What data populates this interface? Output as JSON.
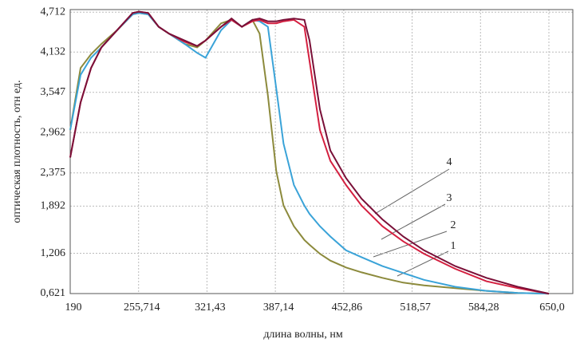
{
  "chart_data": {
    "type": "line",
    "x_label": "длина волны, нм",
    "y_label": "оптическая плотность, отн ед.",
    "x": [
      190,
      200,
      210,
      220,
      235,
      250,
      256,
      265,
      275,
      285,
      300,
      312,
      320,
      335,
      345,
      355,
      365,
      372,
      380,
      388,
      395,
      405,
      415,
      420,
      430,
      440,
      455,
      470,
      490,
      510,
      530,
      560,
      590,
      620,
      650
    ],
    "series": [
      {
        "name": "1",
        "color": "#8c8a3c",
        "values": [
          3.0,
          3.9,
          4.1,
          4.25,
          4.45,
          4.68,
          4.7,
          4.68,
          4.5,
          4.4,
          4.25,
          4.2,
          4.3,
          4.55,
          4.6,
          4.5,
          4.6,
          4.4,
          3.5,
          2.4,
          1.9,
          1.6,
          1.4,
          1.33,
          1.2,
          1.1,
          1.0,
          0.93,
          0.85,
          0.78,
          0.74,
          0.7,
          0.66,
          0.63,
          0.62
        ]
      },
      {
        "name": "2",
        "color": "#3aa3d8",
        "values": [
          3.0,
          3.8,
          4.05,
          4.2,
          4.45,
          4.68,
          4.7,
          4.68,
          4.5,
          4.4,
          4.25,
          4.12,
          4.05,
          4.45,
          4.6,
          4.5,
          4.6,
          4.58,
          4.5,
          3.6,
          2.8,
          2.2,
          1.9,
          1.78,
          1.6,
          1.45,
          1.25,
          1.15,
          1.02,
          0.92,
          0.82,
          0.72,
          0.66,
          0.63,
          0.62
        ]
      },
      {
        "name": "3",
        "color": "#d42040",
        "values": [
          2.6,
          3.4,
          3.9,
          4.2,
          4.45,
          4.7,
          4.72,
          4.7,
          4.5,
          4.4,
          4.28,
          4.22,
          4.3,
          4.5,
          4.6,
          4.5,
          4.58,
          4.6,
          4.55,
          4.55,
          4.58,
          4.6,
          4.5,
          4.0,
          3.0,
          2.55,
          2.2,
          1.9,
          1.6,
          1.38,
          1.2,
          0.98,
          0.8,
          0.7,
          0.62
        ]
      },
      {
        "name": "4",
        "color": "#7a1038",
        "values": [
          2.6,
          3.4,
          3.9,
          4.2,
          4.45,
          4.7,
          4.72,
          4.7,
          4.5,
          4.4,
          4.3,
          4.22,
          4.3,
          4.5,
          4.62,
          4.5,
          4.6,
          4.62,
          4.58,
          4.58,
          4.6,
          4.62,
          4.6,
          4.3,
          3.3,
          2.7,
          2.3,
          2.0,
          1.7,
          1.45,
          1.25,
          1.02,
          0.85,
          0.72,
          0.62
        ]
      }
    ],
    "xlim": [
      190,
      673
    ],
    "ylim": [
      0.621,
      4.75
    ],
    "xticks": [
      190,
      {
        "value": 255.714,
        "label": "255,714"
      },
      {
        "value": 321.43,
        "label": "321,43"
      },
      {
        "value": 387.14,
        "label": "387,14"
      },
      {
        "value": 452.86,
        "label": "452,86"
      },
      {
        "value": 518.57,
        "label": "518,57"
      },
      {
        "value": 584.28,
        "label": "584,28"
      },
      {
        "value": 650.0,
        "label": "650,0"
      }
    ],
    "yticks": [
      {
        "value": 0.621,
        "label": "0,621"
      },
      {
        "value": 1.206,
        "label": "1,206"
      },
      {
        "value": 1.892,
        "label": "1,892"
      },
      {
        "value": 2.375,
        "label": "2,375"
      },
      {
        "value": 2.962,
        "label": "2,962"
      },
      {
        "value": 3.547,
        "label": "3,547"
      },
      {
        "value": 4.132,
        "label": "4,132"
      },
      {
        "value": 4.712,
        "label": "4,712"
      }
    ],
    "grid": true
  }
}
